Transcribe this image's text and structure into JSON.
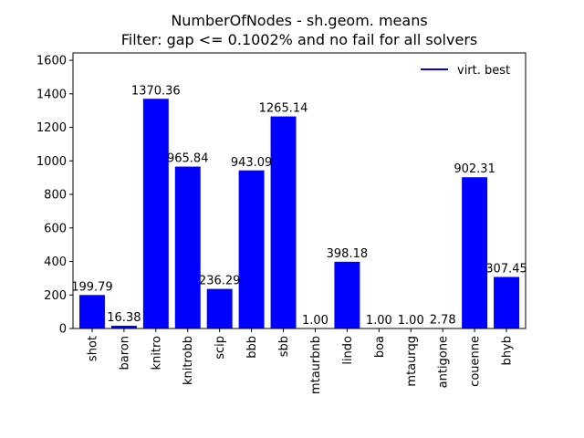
{
  "chart_data": {
    "type": "bar",
    "title_line1": "NumberOfNodes - sh.geom. means",
    "title_line2": "Filter: gap <= 0.1002% and no fail for all solvers",
    "xlabel": "",
    "ylabel": "",
    "categories": [
      "shot",
      "baron",
      "knitro",
      "knitrobb",
      "scip",
      "bbb",
      "sbb",
      "mtaurbnb",
      "lindo",
      "boa",
      "mtaurqg",
      "antigone",
      "couenne",
      "bhyb"
    ],
    "values": [
      199.79,
      16.38,
      1370.36,
      965.84,
      236.29,
      943.09,
      1265.14,
      1.0,
      398.18,
      1.0,
      1.0,
      2.78,
      902.31,
      307.45
    ],
    "value_labels": [
      "199.79",
      "16.38",
      "1370.36",
      "965.84",
      "236.29",
      "943.09",
      "1265.14",
      "1.00",
      "398.18",
      "1.00",
      "1.00",
      "2.78",
      "902.31",
      "307.45"
    ],
    "ylim": [
      0,
      1644
    ],
    "yticks": [
      0,
      200,
      400,
      600,
      800,
      1000,
      1200,
      1400,
      1600
    ],
    "ytick_labels": [
      "0",
      "200",
      "400",
      "600",
      "800",
      "1000",
      "1200",
      "1400",
      "1600"
    ],
    "bar_color": "#0000ff",
    "legend": {
      "label": "virt. best",
      "color": "#0000ff",
      "placement": "top-right"
    },
    "grid": false
  }
}
